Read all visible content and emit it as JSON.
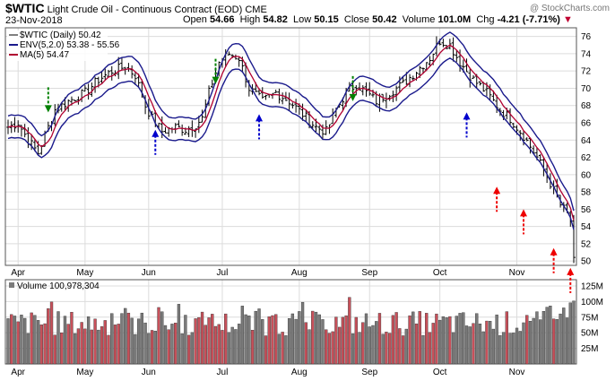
{
  "header": {
    "symbol": "$WTIC",
    "name": "Light Crude Oil - Continuous Contract (EOD)",
    "exchange": "CME",
    "date": "23-Nov-2018",
    "open_label": "Open",
    "open": "54.66",
    "high_label": "High",
    "high": "54.82",
    "low_label": "Low",
    "low": "50.15",
    "close_label": "Close",
    "close": "50.42",
    "volume_label": "Volume",
    "volume": "101.0M",
    "chg_label": "Chg",
    "chg": "-4.21 (-7.71%)",
    "watermark": "@ StockCharts.com"
  },
  "legend": {
    "price": "$WTIC (Daily) 50.42",
    "env": "ENV(5,2.0) 53.38 - 55.56",
    "ma": "MA(5) 54.47",
    "volume": "Volume 100,978,304"
  },
  "colors": {
    "env": "#1a1a8c",
    "ma": "#b00030",
    "bar": "#000000",
    "vol_up": "#c8505a",
    "vol_down": "#7a7a7a",
    "arrow_green": "#008000",
    "arrow_blue": "#0000cc",
    "arrow_red": "#ee0000",
    "grid": "#dcdcdc"
  },
  "chart_data": {
    "type": "line",
    "y_ticks": [
      50,
      52,
      54,
      56,
      58,
      60,
      62,
      64,
      66,
      68,
      70,
      72,
      74,
      76
    ],
    "ylim": [
      49.5,
      77
    ],
    "volume_ticks": [
      "25M",
      "50M",
      "75M",
      "100M",
      "125M"
    ],
    "volume_tick_values": [
      25,
      50,
      75,
      100,
      125
    ],
    "volume_lim": [
      0,
      135
    ],
    "x_labels": [
      "Apr",
      "May",
      "Jun",
      "Jul",
      "Aug",
      "Sep",
      "Oct",
      "Nov"
    ],
    "x_label_index": [
      3,
      23,
      42,
      64,
      87,
      108,
      129,
      152
    ],
    "n_days": 170,
    "close_keypoints": [
      [
        0,
        65.5
      ],
      [
        3,
        66.0
      ],
      [
        6,
        64.0
      ],
      [
        9,
        62.5
      ],
      [
        11,
        64.5
      ],
      [
        14,
        67.5
      ],
      [
        18,
        68.5
      ],
      [
        23,
        69.5
      ],
      [
        27,
        71.0
      ],
      [
        31,
        72.0
      ],
      [
        35,
        72.5
      ],
      [
        38,
        71.5
      ],
      [
        41,
        68.0
      ],
      [
        43,
        66.5
      ],
      [
        46,
        65.0
      ],
      [
        50,
        65.5
      ],
      [
        53,
        65.2
      ],
      [
        56,
        65.8
      ],
      [
        58,
        66.5
      ],
      [
        60,
        69.5
      ],
      [
        63,
        73.0
      ],
      [
        66,
        74.0
      ],
      [
        69,
        73.5
      ],
      [
        72,
        70.0
      ],
      [
        76,
        68.5
      ],
      [
        80,
        69.5
      ],
      [
        84,
        68.5
      ],
      [
        88,
        67.0
      ],
      [
        92,
        65.5
      ],
      [
        95,
        65.0
      ],
      [
        98,
        67.5
      ],
      [
        101,
        69.5
      ],
      [
        104,
        70.5
      ],
      [
        107,
        69.5
      ],
      [
        110,
        68.5
      ],
      [
        114,
        69.5
      ],
      [
        118,
        70.5
      ],
      [
        122,
        72.0
      ],
      [
        126,
        73.5
      ],
      [
        129,
        75.5
      ],
      [
        132,
        75.0
      ],
      [
        135,
        73.0
      ],
      [
        139,
        71.0
      ],
      [
        143,
        69.5
      ],
      [
        147,
        67.5
      ],
      [
        150,
        66.5
      ],
      [
        154,
        64.5
      ],
      [
        158,
        62.0
      ],
      [
        162,
        59.0
      ],
      [
        165,
        56.5
      ],
      [
        167,
        55.5
      ],
      [
        168,
        54.6
      ],
      [
        169,
        50.42
      ]
    ],
    "arrows": [
      {
        "color": "green",
        "dir": "down",
        "index": 12,
        "value": 67.2
      },
      {
        "color": "blue",
        "dir": "up",
        "index": 44,
        "value": 65.2
      },
      {
        "color": "green",
        "dir": "down",
        "index": 62,
        "value": 70.5
      },
      {
        "color": "blue",
        "dir": "up",
        "index": 75,
        "value": 67.0
      },
      {
        "color": "green",
        "dir": "down",
        "index": 103,
        "value": 68.5
      },
      {
        "color": "blue",
        "dir": "up",
        "index": 137,
        "value": 67.2
      },
      {
        "color": "red",
        "dir": "up",
        "index": 146,
        "value": 58.6
      },
      {
        "color": "red",
        "dir": "up",
        "index": 154,
        "value": 56.0
      },
      {
        "color": "red",
        "dir": "up",
        "index": 163,
        "value": 51.5
      },
      {
        "color": "red",
        "dir": "up",
        "index": 168,
        "value": 49.2
      }
    ]
  }
}
